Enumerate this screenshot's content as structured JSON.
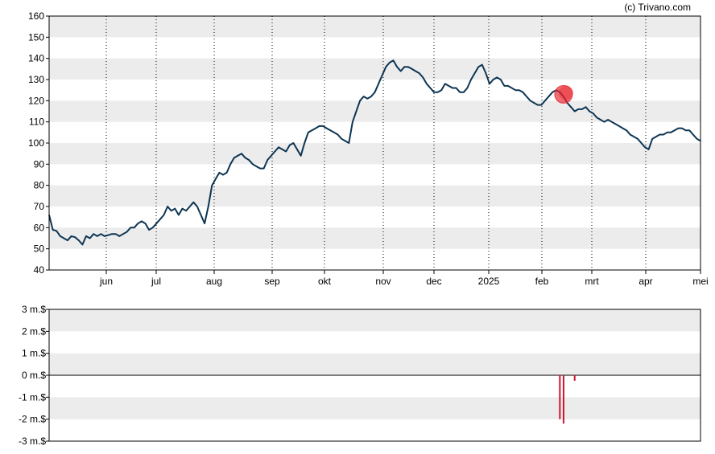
{
  "copyright": "(c) Trivano.com",
  "colors": {
    "band": "#ececec",
    "price_line": "#0d3553",
    "marker": "#e8202a",
    "volume_bar": "#d0142c",
    "grid_vertical": "#000000",
    "axis": "#000000"
  },
  "chart_data": [
    {
      "type": "line",
      "title": "",
      "xlabel": "",
      "ylabel": "",
      "ylim": [
        40,
        160
      ],
      "ytick_labels": [
        "40",
        "50",
        "60",
        "70",
        "80",
        "90",
        "100",
        "110",
        "120",
        "130",
        "140",
        "150",
        "160"
      ],
      "xtick_labels": [
        "jun",
        "jul",
        "aug",
        "sep",
        "okt",
        "nov",
        "dec",
        "2025",
        "feb",
        "mrt",
        "apr",
        "mei"
      ],
      "grid": "vertical dotted at months, alternating horizontal bands",
      "series": [
        {
          "values": [
            66,
            59,
            58.5,
            56,
            55,
            54,
            56,
            55.5,
            54,
            52,
            56,
            55,
            57,
            56,
            57,
            56,
            56.5,
            57,
            57,
            56,
            57,
            58,
            60,
            60,
            62,
            63,
            62,
            59,
            60,
            62,
            64,
            66,
            70,
            68,
            69,
            66,
            69,
            68,
            70,
            72,
            70,
            66,
            62,
            70,
            80,
            83,
            86,
            85,
            86,
            90,
            93,
            94,
            95,
            93,
            92,
            90,
            89,
            88,
            88,
            92,
            94,
            96,
            98,
            97,
            96,
            99,
            100,
            97,
            94,
            100,
            105,
            106,
            107,
            108,
            108,
            107,
            106,
            105,
            104,
            102,
            101,
            100,
            110,
            115,
            120,
            122,
            121,
            122,
            124,
            128,
            132,
            136,
            138,
            139,
            136,
            134,
            136,
            136,
            135,
            134,
            133,
            131,
            128,
            126,
            124,
            124,
            125,
            128,
            127,
            126,
            126,
            124,
            124,
            126,
            130,
            133,
            136,
            137,
            133,
            128,
            130,
            131,
            130,
            127,
            127,
            126,
            125,
            125,
            124,
            122,
            120,
            119,
            118,
            118,
            120,
            122,
            124,
            125,
            124,
            122,
            119,
            117,
            115,
            116,
            116,
            117,
            115,
            114,
            112,
            111,
            110,
            111,
            110,
            109,
            108,
            107,
            106,
            104,
            103,
            102,
            100,
            98,
            97,
            102,
            103,
            104,
            104,
            105,
            105,
            106,
            107,
            107,
            106,
            106,
            104,
            102,
            101
          ]
        }
      ],
      "markers": [
        {
          "label": "buy/sell event",
          "date_index": 139,
          "value": 123
        }
      ]
    },
    {
      "type": "bar",
      "title": "",
      "xlabel": "",
      "ylabel": "",
      "ylim": [
        -3,
        3
      ],
      "unit": "m.$",
      "ytick_labels": [
        "3 m.$",
        "2 m.$",
        "1 m.$",
        "0 m.$",
        "-1 m.$",
        "-2 m.$",
        "-3 m.$"
      ],
      "grid": "alternating horizontal bands",
      "bars": [
        {
          "date_index": 138,
          "value": -2.0
        },
        {
          "date_index": 139,
          "value": -2.2
        },
        {
          "date_index": 142,
          "value": -0.25
        }
      ]
    }
  ]
}
